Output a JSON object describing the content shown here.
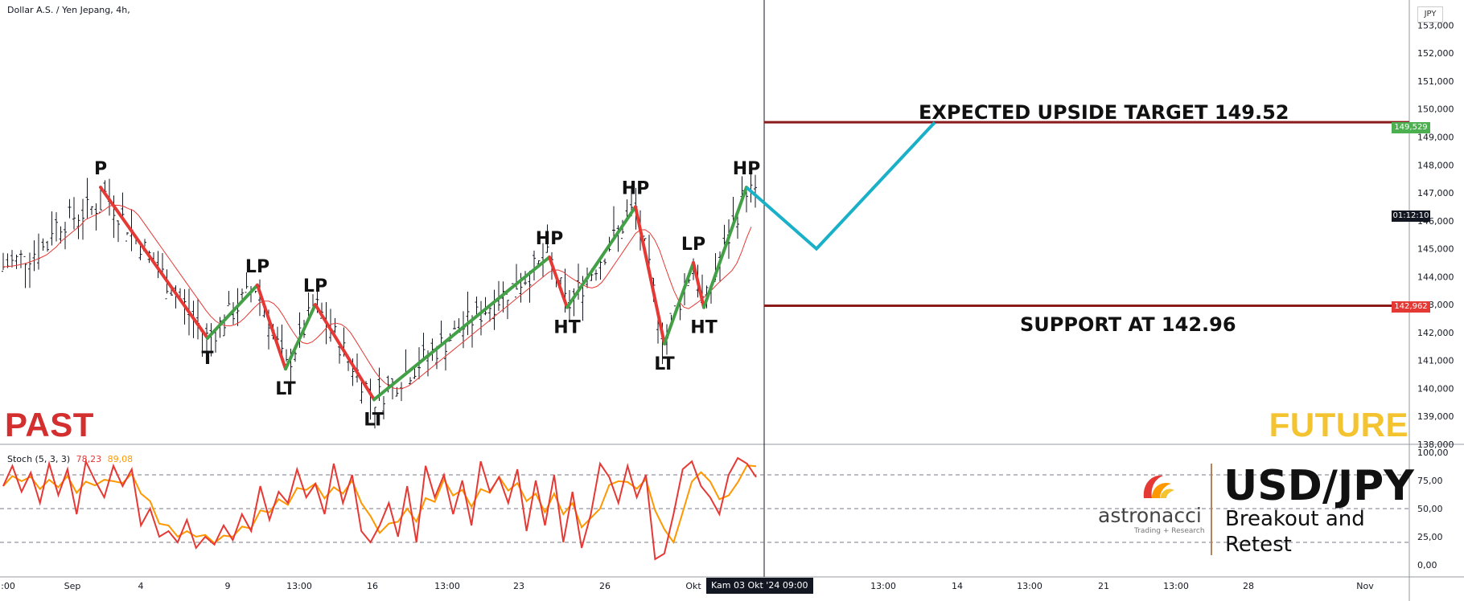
{
  "header": {
    "title": "Dollar A.S. / Yen Jepang, 4h,"
  },
  "currency": "JPY",
  "labels": {
    "past": "PAST",
    "future": "FUTURE"
  },
  "annotations": {
    "target": "EXPECTED UPSIDE TARGET 149.52",
    "support": "SUPPORT AT 142.96"
  },
  "price_tags": {
    "target": "149,529",
    "countdown": "01:12:10",
    "support": "142,962"
  },
  "stoch": {
    "name": "Stoch (5, 3, 3)",
    "k": "78,23",
    "d": "89,08"
  },
  "brand": {
    "name": "astronacci",
    "sub": "Trading + Research"
  },
  "title_block": {
    "pair": "USD/JPY",
    "line1": "Breakout and",
    "line2": "Retest"
  },
  "time_cursor": "Kam 03 Okt '24  09:00",
  "colors": {
    "down_leg": "#e53935",
    "up_leg": "#43a047",
    "projection": "#1ab0c8",
    "level_line": "#8b1a1a",
    "ma": "#e53935",
    "stoch_k": "#e53935",
    "stoch_d": "#ff9800",
    "target_tag": "#4caf50",
    "support_tag": "#e53935"
  },
  "chart_data": {
    "type": "line",
    "title": "Dollar A.S. / Yen Jepang, 4h,",
    "ylim": [
      138,
      153.5
    ],
    "y_ticks": [
      "153,000",
      "152,000",
      "151,000",
      "150,000",
      "149,000",
      "148,000",
      "147,000",
      "146,000",
      "145,000",
      "144,000",
      "143,000",
      "142,000",
      "141,000",
      "140,000",
      "139,000",
      "138,000"
    ],
    "x_ticks": [
      ":00",
      "Sep",
      "4",
      "9",
      "13:00",
      "16",
      "13:00",
      "23",
      "26",
      "Okt",
      "13:00",
      "14",
      "13:00",
      "21",
      "13:00",
      "28",
      "Nov"
    ],
    "pivots": [
      {
        "label": "P",
        "price": 147.2
      },
      {
        "label": "T",
        "price": 141.8
      },
      {
        "label": "LP",
        "price": 143.7
      },
      {
        "label": "LT",
        "price": 140.7
      },
      {
        "label": "LP",
        "price": 143.0
      },
      {
        "label": "LT",
        "price": 139.6
      },
      {
        "label": "HP",
        "price": 144.7
      },
      {
        "label": "HT",
        "price": 142.9
      },
      {
        "label": "HP",
        "price": 146.5
      },
      {
        "label": "LT",
        "price": 141.6
      },
      {
        "label": "LP",
        "price": 144.5
      },
      {
        "label": "HT",
        "price": 142.9
      },
      {
        "label": "HP",
        "price": 147.2
      }
    ],
    "projection": [
      147.2,
      145.0,
      149.52
    ],
    "levels": [
      {
        "name": "EXPECTED UPSIDE TARGET 149.52",
        "price": 149.529
      },
      {
        "name": "SUPPORT AT 142.96",
        "price": 142.962
      }
    ],
    "stochastic": {
      "ylim": [
        0,
        100
      ],
      "y_ticks": [
        "100,00",
        "75,00",
        "50,00",
        "25,00",
        "0,00"
      ],
      "levels": [
        80,
        50,
        20
      ],
      "k_last": 78.23,
      "d_last": 89.08,
      "k": [
        70,
        88,
        65,
        82,
        55,
        90,
        62,
        85,
        45,
        92,
        75,
        60,
        88,
        70,
        85,
        35,
        50,
        25,
        30,
        20,
        40,
        15,
        25,
        18,
        35,
        22,
        45,
        30,
        70,
        40,
        65,
        55,
        85,
        60,
        72,
        45,
        90,
        55,
        80,
        30,
        20,
        35,
        55,
        25,
        70,
        20,
        88,
        60,
        80,
        45,
        75,
        35,
        92,
        65,
        78,
        55,
        85,
        30,
        75,
        35,
        80,
        20,
        65,
        15,
        45,
        90,
        78,
        55,
        88,
        60,
        80,
        5,
        10,
        45,
        85,
        92,
        70,
        60,
        45,
        80,
        95,
        90,
        78
      ]
    }
  }
}
